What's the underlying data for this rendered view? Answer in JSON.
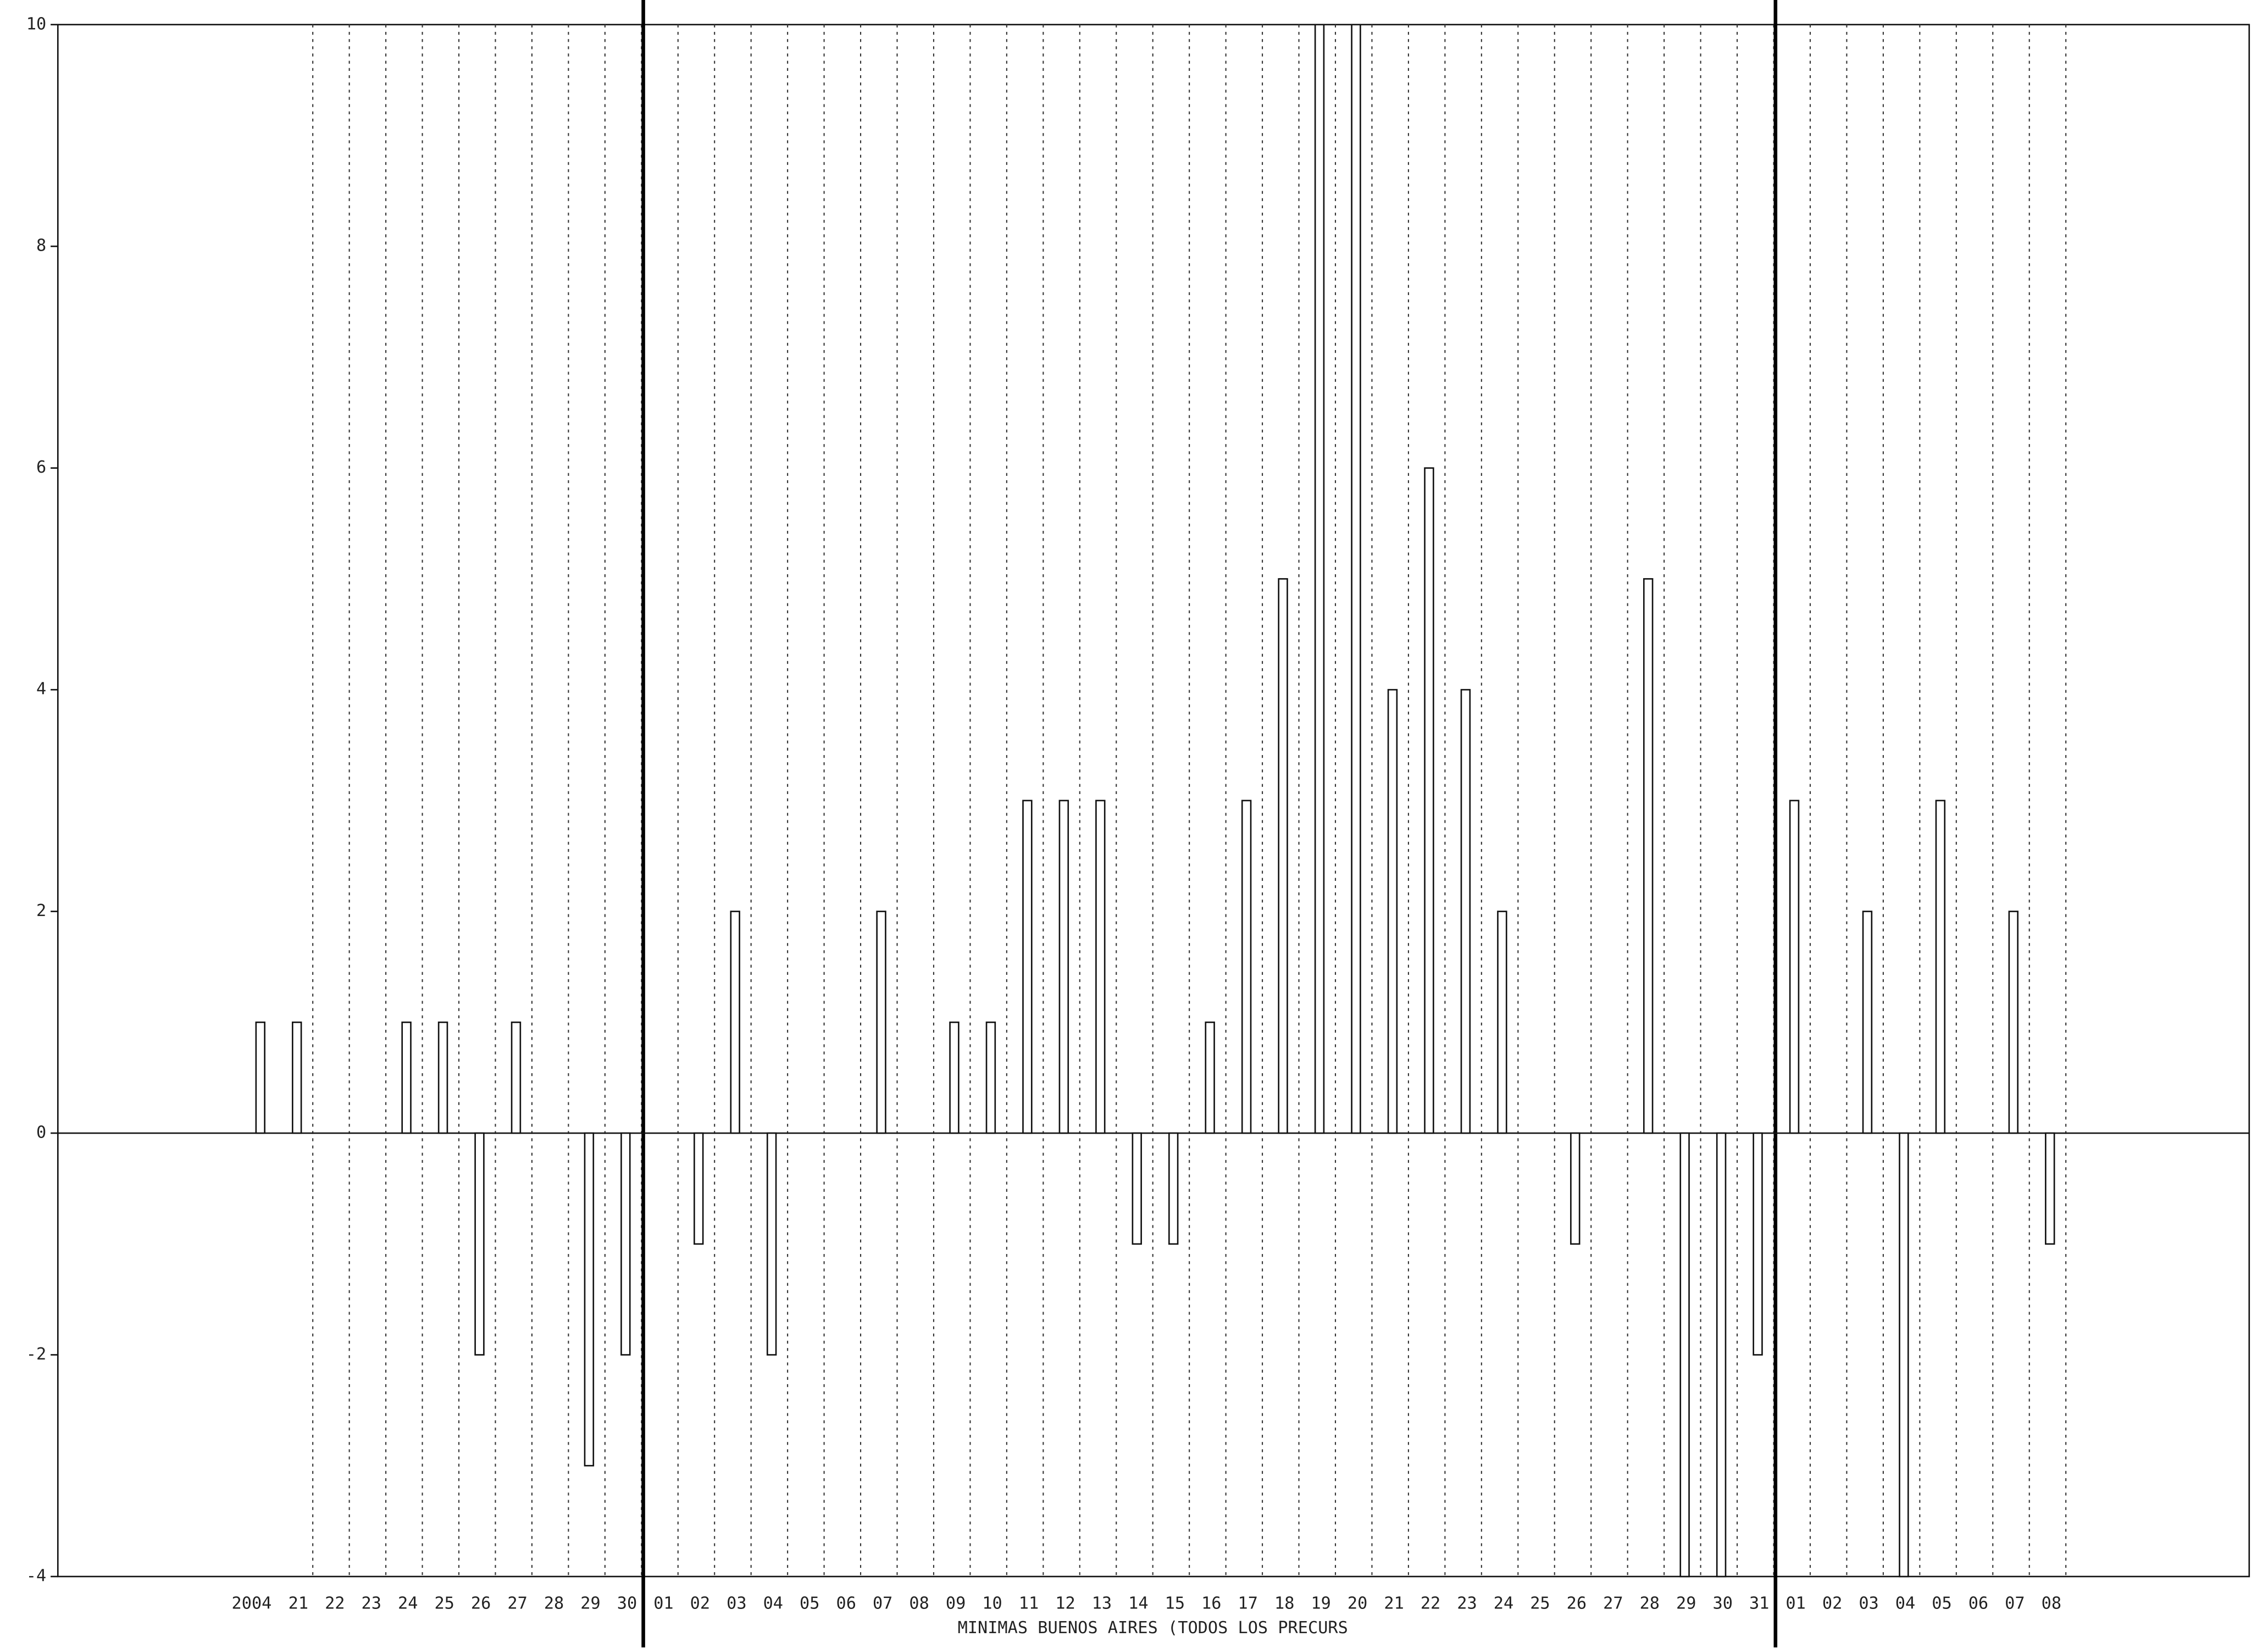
{
  "chart_data": {
    "type": "bar",
    "title": "MINIMAS BUENOS AIRES (TODOS LOS PRECURS",
    "categories": [
      "2004",
      "21",
      "22",
      "23",
      "24",
      "25",
      "26",
      "27",
      "28",
      "29",
      "30",
      "01",
      "02",
      "03",
      "04",
      "05",
      "06",
      "07",
      "08",
      "09",
      "10",
      "11",
      "12",
      "13",
      "14",
      "15",
      "16",
      "17",
      "18",
      "19",
      "20",
      "21",
      "22",
      "23",
      "24",
      "25",
      "26",
      "27",
      "28",
      "29",
      "30",
      "31",
      "01",
      "02",
      "03",
      "04",
      "05",
      "06",
      "07",
      "08"
    ],
    "values": [
      1,
      1,
      0,
      0,
      1,
      1,
      -2,
      1,
      0,
      -3,
      -2,
      0,
      -1,
      2,
      -2,
      0,
      0,
      2,
      0,
      1,
      1,
      3,
      3,
      3,
      -1,
      -1,
      1,
      3,
      5,
      10,
      10,
      4,
      6,
      4,
      2,
      0,
      -1,
      0,
      5,
      -4,
      -4,
      -2,
      3,
      0,
      2,
      -4,
      3,
      0,
      2,
      -1
    ],
    "color": "#ffffff",
    "ylim": [
      -4,
      10
    ],
    "yticks": [
      -4,
      -2,
      0,
      2,
      4,
      6,
      8,
      10
    ],
    "grid": true
  }
}
